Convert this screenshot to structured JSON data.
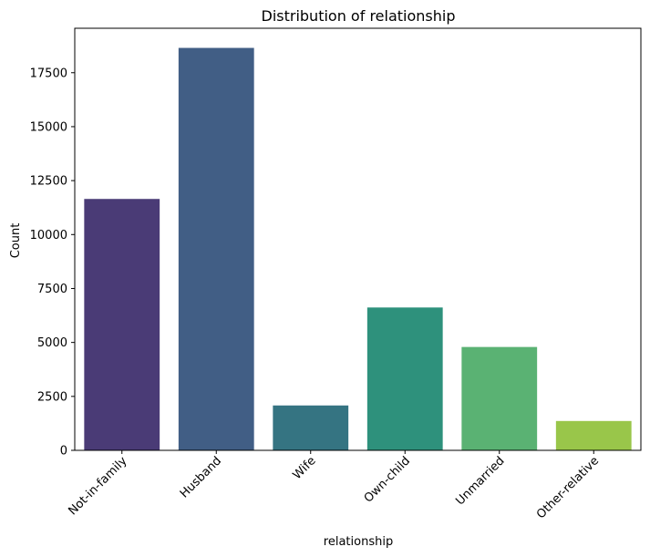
{
  "chart_data": {
    "type": "bar",
    "title": "Distribution of relationship",
    "xlabel": "relationship",
    "ylabel": "Count",
    "categories": [
      "Not-in-family",
      "Husband",
      "Wife",
      "Own-child",
      "Unmarried",
      "Other-relative"
    ],
    "values": [
      11650,
      18650,
      2080,
      6620,
      4790,
      1360
    ],
    "colors": [
      "#4a3b76",
      "#415e85",
      "#357482",
      "#2e917c",
      "#5ab273",
      "#99c64a"
    ],
    "ylim": [
      0,
      19560
    ],
    "yticks": [
      0,
      2500,
      5000,
      7500,
      10000,
      12500,
      15000,
      17500
    ],
    "ytick_labels": [
      "0",
      "2500",
      "5000",
      "7500",
      "10000",
      "12500",
      "15000",
      "17500"
    ],
    "grid": false,
    "legend": "none"
  }
}
